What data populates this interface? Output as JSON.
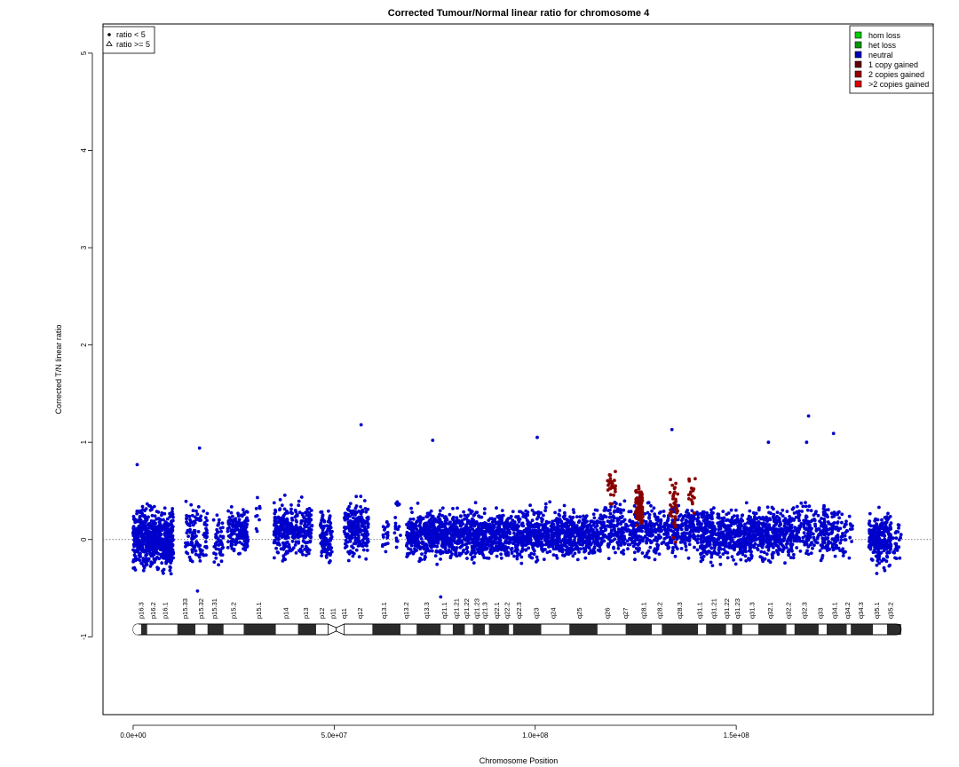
{
  "chart_data": {
    "type": "scatter",
    "title": "Corrected Tumour/Normal linear ratio for chromosome  4",
    "xlabel": "Chromosome Position",
    "ylabel": "Corrected T/N linear ratio",
    "xlim": [
      -7500000,
      199000000
    ],
    "ylim": [
      -1.8,
      5.3
    ],
    "x_ticks": [
      0,
      50000000,
      100000000,
      150000000
    ],
    "x_tick_labels": [
      "0.0e+00",
      "5.0e+07",
      "1.0e+08",
      "1.5e+08"
    ],
    "y_ticks": [
      -1,
      0,
      1,
      2,
      3,
      4,
      5
    ],
    "y_tick_labels": [
      "-1",
      "0",
      "1",
      "2",
      "3",
      "4",
      "5"
    ],
    "reference_line": 0,
    "shape_legend": {
      "position": "top-left",
      "entries": [
        {
          "label": "ratio < 5",
          "shape": "dot"
        },
        {
          "label": "ratio >= 5",
          "shape": "triangle"
        }
      ]
    },
    "legend": {
      "position": "top-right",
      "entries": [
        {
          "label": "hom loss",
          "color": "#00CC00"
        },
        {
          "label": "het loss",
          "color": "#009900"
        },
        {
          "label": "neutral",
          "color": "#0000BB"
        },
        {
          "label": "1 copy gained",
          "color": "#660000"
        },
        {
          "label": "2 copies gained",
          "color": "#990000"
        },
        {
          "label": ">2 copies gained",
          "color": "#DD0000"
        }
      ]
    },
    "point_colors": {
      "neutral": "#0000CC",
      "gain": "#880000"
    },
    "clusters": [
      {
        "x0": 0,
        "x1": 10000000,
        "center": 0.0,
        "spread": 0.25,
        "n": 700,
        "state": "neutral"
      },
      {
        "x0": 13000000,
        "x1": 18500000,
        "center": 0.05,
        "spread": 0.25,
        "n": 110,
        "state": "neutral"
      },
      {
        "x0": 20000000,
        "x1": 22500000,
        "center": 0.0,
        "spread": 0.2,
        "n": 50,
        "state": "neutral"
      },
      {
        "x0": 23500000,
        "x1": 28500000,
        "center": 0.1,
        "spread": 0.22,
        "n": 150,
        "state": "neutral"
      },
      {
        "x0": 30500000,
        "x1": 31800000,
        "center": 0.3,
        "spread": 0.25,
        "n": 10,
        "state": "neutral"
      },
      {
        "x0": 35000000,
        "x1": 44500000,
        "center": 0.1,
        "spread": 0.22,
        "n": 320,
        "state": "neutral"
      },
      {
        "x0": 46500000,
        "x1": 49500000,
        "center": 0.05,
        "spread": 0.22,
        "n": 110,
        "state": "neutral"
      },
      {
        "x0": 52500000,
        "x1": 58500000,
        "center": 0.1,
        "spread": 0.22,
        "n": 240,
        "state": "neutral"
      },
      {
        "x0": 62000000,
        "x1": 63500000,
        "center": 0.1,
        "spread": 0.2,
        "n": 20,
        "state": "neutral"
      },
      {
        "x0": 65000000,
        "x1": 66500000,
        "center": 0.15,
        "spread": 0.25,
        "n": 20,
        "state": "neutral"
      },
      {
        "x0": 68000000,
        "x1": 116000000,
        "center": 0.05,
        "spread": 0.2,
        "n": 1900,
        "state": "neutral"
      },
      {
        "x0": 116000000,
        "x1": 141000000,
        "center": 0.1,
        "spread": 0.22,
        "n": 620,
        "state": "neutral"
      },
      {
        "x0": 118000000,
        "x1": 120000000,
        "center": 0.55,
        "spread": 0.18,
        "n": 28,
        "state": "gain"
      },
      {
        "x0": 125000000,
        "x1": 126800000,
        "center": 0.35,
        "spread": 0.18,
        "n": 90,
        "state": "gain"
      },
      {
        "x0": 133500000,
        "x1": 135500000,
        "center": 0.35,
        "spread": 0.28,
        "n": 40,
        "state": "gain"
      },
      {
        "x0": 138000000,
        "x1": 139800000,
        "center": 0.45,
        "spread": 0.2,
        "n": 16,
        "state": "gain"
      },
      {
        "x0": 141000000,
        "x1": 164000000,
        "center": 0.05,
        "spread": 0.22,
        "n": 900,
        "state": "neutral"
      },
      {
        "x0": 164000000,
        "x1": 176000000,
        "center": 0.1,
        "spread": 0.22,
        "n": 260,
        "state": "neutral"
      },
      {
        "x0": 176000000,
        "x1": 179000000,
        "center": 0.05,
        "spread": 0.22,
        "n": 30,
        "state": "neutral"
      },
      {
        "x0": 183000000,
        "x1": 188500000,
        "center": 0.0,
        "spread": 0.22,
        "n": 260,
        "state": "neutral"
      },
      {
        "x0": 189000000,
        "x1": 191000000,
        "center": 0.0,
        "spread": 0.2,
        "n": 25,
        "state": "neutral"
      }
    ],
    "outliers": [
      {
        "x": 56700000,
        "y": 1.18
      },
      {
        "x": 168000000,
        "y": 1.27
      },
      {
        "x": 174200000,
        "y": 1.09
      },
      {
        "x": 134000000,
        "y": 1.13
      },
      {
        "x": 100500000,
        "y": 1.05
      },
      {
        "x": 74500000,
        "y": 1.02
      },
      {
        "x": 158000000,
        "y": 1.0
      },
      {
        "x": 167500000,
        "y": 1.0
      },
      {
        "x": 16500000,
        "y": 0.94
      },
      {
        "x": 1000000,
        "y": 0.77
      },
      {
        "x": 76500000,
        "y": -0.59
      },
      {
        "x": 16000000,
        "y": -0.53
      }
    ],
    "ideogram": {
      "start": 0,
      "end": 191000000,
      "centromere": 50500000,
      "bands": [
        {
          "start": 0,
          "end": 2000000,
          "stain": "gneg"
        },
        {
          "start": 2000000,
          "end": 3500000,
          "stain": "gpos"
        },
        {
          "start": 3500000,
          "end": 11000000,
          "stain": "gneg"
        },
        {
          "start": 11000000,
          "end": 15500000,
          "stain": "gpos"
        },
        {
          "start": 15500000,
          "end": 18500000,
          "stain": "gneg"
        },
        {
          "start": 18500000,
          "end": 22500000,
          "stain": "gpos"
        },
        {
          "start": 22500000,
          "end": 27500000,
          "stain": "gneg"
        },
        {
          "start": 27500000,
          "end": 35500000,
          "stain": "gpos"
        },
        {
          "start": 35500000,
          "end": 41000000,
          "stain": "gneg"
        },
        {
          "start": 41000000,
          "end": 45500000,
          "stain": "gpos"
        },
        {
          "start": 45500000,
          "end": 48500000,
          "stain": "gneg"
        },
        {
          "start": 48500000,
          "end": 50500000,
          "stain": "acen"
        },
        {
          "start": 50500000,
          "end": 52500000,
          "stain": "acen"
        },
        {
          "start": 52500000,
          "end": 59500000,
          "stain": "gneg"
        },
        {
          "start": 59500000,
          "end": 66500000,
          "stain": "gpos"
        },
        {
          "start": 66500000,
          "end": 70500000,
          "stain": "gneg"
        },
        {
          "start": 70500000,
          "end": 76500000,
          "stain": "gpos"
        },
        {
          "start": 76500000,
          "end": 79500000,
          "stain": "gneg"
        },
        {
          "start": 79500000,
          "end": 82500000,
          "stain": "gpos"
        },
        {
          "start": 82500000,
          "end": 84500000,
          "stain": "gneg"
        },
        {
          "start": 84500000,
          "end": 87500000,
          "stain": "gpos"
        },
        {
          "start": 87500000,
          "end": 88500000,
          "stain": "gneg"
        },
        {
          "start": 88500000,
          "end": 93500000,
          "stain": "gpos"
        },
        {
          "start": 93500000,
          "end": 94500000,
          "stain": "gneg"
        },
        {
          "start": 94500000,
          "end": 101500000,
          "stain": "gpos"
        },
        {
          "start": 101500000,
          "end": 108500000,
          "stain": "gneg"
        },
        {
          "start": 108500000,
          "end": 115500000,
          "stain": "gpos"
        },
        {
          "start": 115500000,
          "end": 122500000,
          "stain": "gneg"
        },
        {
          "start": 122500000,
          "end": 129000000,
          "stain": "gpos"
        },
        {
          "start": 129000000,
          "end": 131500000,
          "stain": "gneg"
        },
        {
          "start": 131500000,
          "end": 140500000,
          "stain": "gpos"
        },
        {
          "start": 140500000,
          "end": 142500000,
          "stain": "gneg"
        },
        {
          "start": 142500000,
          "end": 147500000,
          "stain": "gpos"
        },
        {
          "start": 147500000,
          "end": 149000000,
          "stain": "gneg"
        },
        {
          "start": 149000000,
          "end": 151500000,
          "stain": "gpos"
        },
        {
          "start": 151500000,
          "end": 155500000,
          "stain": "gneg"
        },
        {
          "start": 155500000,
          "end": 162500000,
          "stain": "gpos"
        },
        {
          "start": 162500000,
          "end": 164500000,
          "stain": "gneg"
        },
        {
          "start": 164500000,
          "end": 170500000,
          "stain": "gpos"
        },
        {
          "start": 170500000,
          "end": 172500000,
          "stain": "gneg"
        },
        {
          "start": 172500000,
          "end": 177500000,
          "stain": "gpos"
        },
        {
          "start": 177500000,
          "end": 178500000,
          "stain": "gneg"
        },
        {
          "start": 178500000,
          "end": 184000000,
          "stain": "gpos"
        },
        {
          "start": 184000000,
          "end": 187500000,
          "stain": "gneg"
        },
        {
          "start": 187500000,
          "end": 191000000,
          "stain": "gpos"
        }
      ],
      "labels": [
        {
          "name": "p16.3",
          "pos": 2500000
        },
        {
          "name": "p16.2",
          "pos": 5500000
        },
        {
          "name": "p16.1",
          "pos": 8500000
        },
        {
          "name": "p15.33",
          "pos": 13500000
        },
        {
          "name": "p15.32",
          "pos": 17500000
        },
        {
          "name": "p15.31",
          "pos": 20800000
        },
        {
          "name": "p15.2",
          "pos": 25500000
        },
        {
          "name": "p15.1",
          "pos": 31800000
        },
        {
          "name": "p14",
          "pos": 38500000
        },
        {
          "name": "p13",
          "pos": 43500000
        },
        {
          "name": "p12",
          "pos": 47500000
        },
        {
          "name": "p11",
          "pos": 50200000
        },
        {
          "name": "q11",
          "pos": 53000000
        },
        {
          "name": "q12",
          "pos": 57000000
        },
        {
          "name": "q13.1",
          "pos": 63000000
        },
        {
          "name": "q13.2",
          "pos": 68500000
        },
        {
          "name": "q13.3",
          "pos": 73500000
        },
        {
          "name": "q21.1",
          "pos": 78000000
        },
        {
          "name": "q21.21",
          "pos": 81000000
        },
        {
          "name": "q21.22",
          "pos": 83500000
        },
        {
          "name": "q21.23",
          "pos": 86000000
        },
        {
          "name": "q21.3",
          "pos": 88000000
        },
        {
          "name": "q22.1",
          "pos": 91000000
        },
        {
          "name": "q22.2",
          "pos": 93500000
        },
        {
          "name": "q22.3",
          "pos": 96500000
        },
        {
          "name": "q23",
          "pos": 100800000
        },
        {
          "name": "q24",
          "pos": 105000000
        },
        {
          "name": "q25",
          "pos": 111500000
        },
        {
          "name": "q26",
          "pos": 118500000
        },
        {
          "name": "q27",
          "pos": 123000000
        },
        {
          "name": "q28.1",
          "pos": 127500000
        },
        {
          "name": "q28.2",
          "pos": 131500000
        },
        {
          "name": "q28.3",
          "pos": 136500000
        },
        {
          "name": "q31.1",
          "pos": 141500000
        },
        {
          "name": "q31.21",
          "pos": 145000000
        },
        {
          "name": "q31.22",
          "pos": 148200000
        },
        {
          "name": "q31.23",
          "pos": 150800000
        },
        {
          "name": "q31.3",
          "pos": 154500000
        },
        {
          "name": "q32.1",
          "pos": 159000000
        },
        {
          "name": "q32.2",
          "pos": 163500000
        },
        {
          "name": "q32.3",
          "pos": 167500000
        },
        {
          "name": "q33",
          "pos": 171500000
        },
        {
          "name": "q34.1",
          "pos": 175000000
        },
        {
          "name": "q34.2",
          "pos": 178200000
        },
        {
          "name": "q34.3",
          "pos": 181500000
        },
        {
          "name": "q35.1",
          "pos": 185500000
        },
        {
          "name": "q35.2",
          "pos": 189000000
        }
      ]
    }
  }
}
